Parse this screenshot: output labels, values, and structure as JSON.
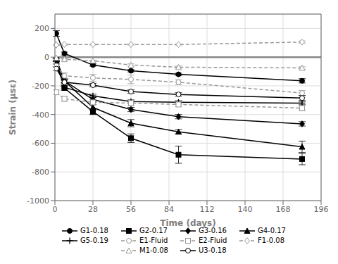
{
  "chart_data": {
    "type": "line",
    "xlabel": "Time (days)",
    "ylabel": "Strain (μsε)",
    "xlim": [
      0,
      196
    ],
    "ylim": [
      -1000,
      300
    ],
    "xticks": [
      0,
      28,
      56,
      84,
      112,
      140,
      168,
      196
    ],
    "yticks": [
      -1000,
      -800,
      -600,
      -400,
      -200,
      0,
      200
    ],
    "grid": true,
    "legend": "bottom",
    "x": [
      1,
      7,
      28,
      56,
      91,
      182
    ],
    "series": [
      {
        "name": "G1-0.18",
        "color": "#000000",
        "marker": "circle",
        "line_style": "solid",
        "values": [
          165,
          25,
          -55,
          -95,
          -120,
          -165
        ],
        "yerr": [
          20,
          10,
          8,
          8,
          8,
          15
        ]
      },
      {
        "name": "G2-0.17",
        "color": "#000000",
        "marker": "square",
        "line_style": "solid",
        "values": [
          -20,
          -215,
          -380,
          -565,
          -680,
          -710
        ],
        "yerr": [
          8,
          15,
          20,
          30,
          60,
          40
        ]
      },
      {
        "name": "G3-0.16",
        "color": "#000000",
        "marker": "diamond",
        "line_style": "solid",
        "values": [
          -20,
          -165,
          -295,
          -365,
          -415,
          -465
        ],
        "yerr": [
          8,
          10,
          15,
          15,
          15,
          15
        ]
      },
      {
        "name": "G4-0.17",
        "color": "#000000",
        "marker": "triangle",
        "line_style": "solid",
        "values": [
          -15,
          -165,
          -350,
          -460,
          -520,
          -625
        ],
        "yerr": [
          8,
          15,
          20,
          25,
          15,
          40
        ]
      },
      {
        "name": "G5-0.19",
        "color": "#000000",
        "marker": "plus",
        "line_style": "solid",
        "values": [
          -40,
          -210,
          -270,
          -310,
          -315,
          -320
        ],
        "yerr": [
          8,
          10,
          12,
          12,
          12,
          12
        ]
      },
      {
        "name": "E1-Fluid",
        "color": "#999999",
        "marker": "circle_open",
        "line_style": "dashed",
        "values": [
          -60,
          -130,
          -145,
          -155,
          -175,
          -250
        ],
        "yerr": [
          12,
          20,
          25,
          30,
          18,
          18
        ]
      },
      {
        "name": "E2-Fluid",
        "color": "#999999",
        "marker": "square_open",
        "line_style": "dashed",
        "values": [
          -245,
          -290,
          -315,
          -320,
          -330,
          -355
        ],
        "yerr": [
          15,
          18,
          18,
          18,
          15,
          18
        ]
      },
      {
        "name": "F1-0.08",
        "color": "#999999",
        "marker": "diamond_open",
        "line_style": "dashed",
        "values": [
          85,
          88,
          88,
          88,
          88,
          105
        ],
        "yerr": [
          4,
          4,
          4,
          4,
          4,
          8
        ]
      },
      {
        "name": "M1-0.08",
        "color": "#999999",
        "marker": "triangle_open",
        "line_style": "dashed",
        "values": [
          -5,
          -15,
          -25,
          -55,
          -70,
          -75
        ],
        "yerr": [
          4,
          4,
          4,
          8,
          8,
          8
        ]
      },
      {
        "name": "U3-0.18",
        "color": "#000000",
        "marker": "circle_open",
        "line_style": "solid",
        "values": [
          -80,
          -175,
          -195,
          -240,
          -260,
          -285
        ],
        "yerr": [
          12,
          15,
          12,
          12,
          12,
          18
        ]
      }
    ]
  }
}
